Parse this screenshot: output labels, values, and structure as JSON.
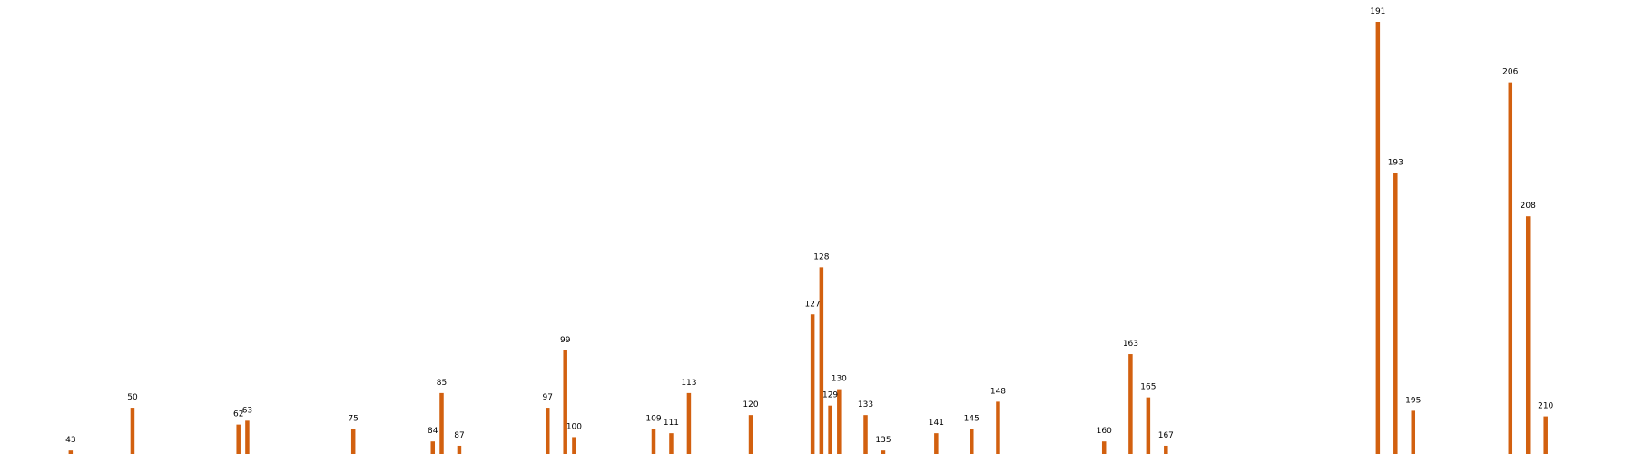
{
  "chart_data": {
    "type": "bar",
    "title": "",
    "xlabel": "",
    "ylabel": "",
    "bar_color": "#d2600f",
    "grid": false,
    "legend": "none",
    "xlim": [
      35,
      220
    ],
    "ylim": [
      0,
      1.0
    ],
    "categories": [
      "43",
      "50",
      "62",
      "63",
      "75",
      "84",
      "85",
      "87",
      "97",
      "99",
      "100",
      "109",
      "111",
      "113",
      "120",
      "127",
      "128",
      "129",
      "130",
      "133",
      "135",
      "141",
      "145",
      "148",
      "160",
      "163",
      "165",
      "167",
      "191",
      "193",
      "195",
      "206",
      "208",
      "210"
    ],
    "x": [
      43,
      50,
      62,
      63,
      75,
      84,
      85,
      87,
      97,
      99,
      100,
      109,
      111,
      113,
      120,
      127,
      128,
      129,
      130,
      133,
      135,
      141,
      145,
      148,
      160,
      163,
      165,
      167,
      191,
      193,
      195,
      206,
      208,
      210
    ],
    "values": [
      0.008,
      0.107,
      0.068,
      0.077,
      0.058,
      0.029,
      0.141,
      0.019,
      0.107,
      0.24,
      0.039,
      0.058,
      0.048,
      0.141,
      0.09,
      0.323,
      0.432,
      0.112,
      0.15,
      0.09,
      0.008,
      0.048,
      0.058,
      0.121,
      0.029,
      0.231,
      0.131,
      0.019,
      1.0,
      0.65,
      0.1,
      0.86,
      0.55,
      0.087
    ]
  }
}
